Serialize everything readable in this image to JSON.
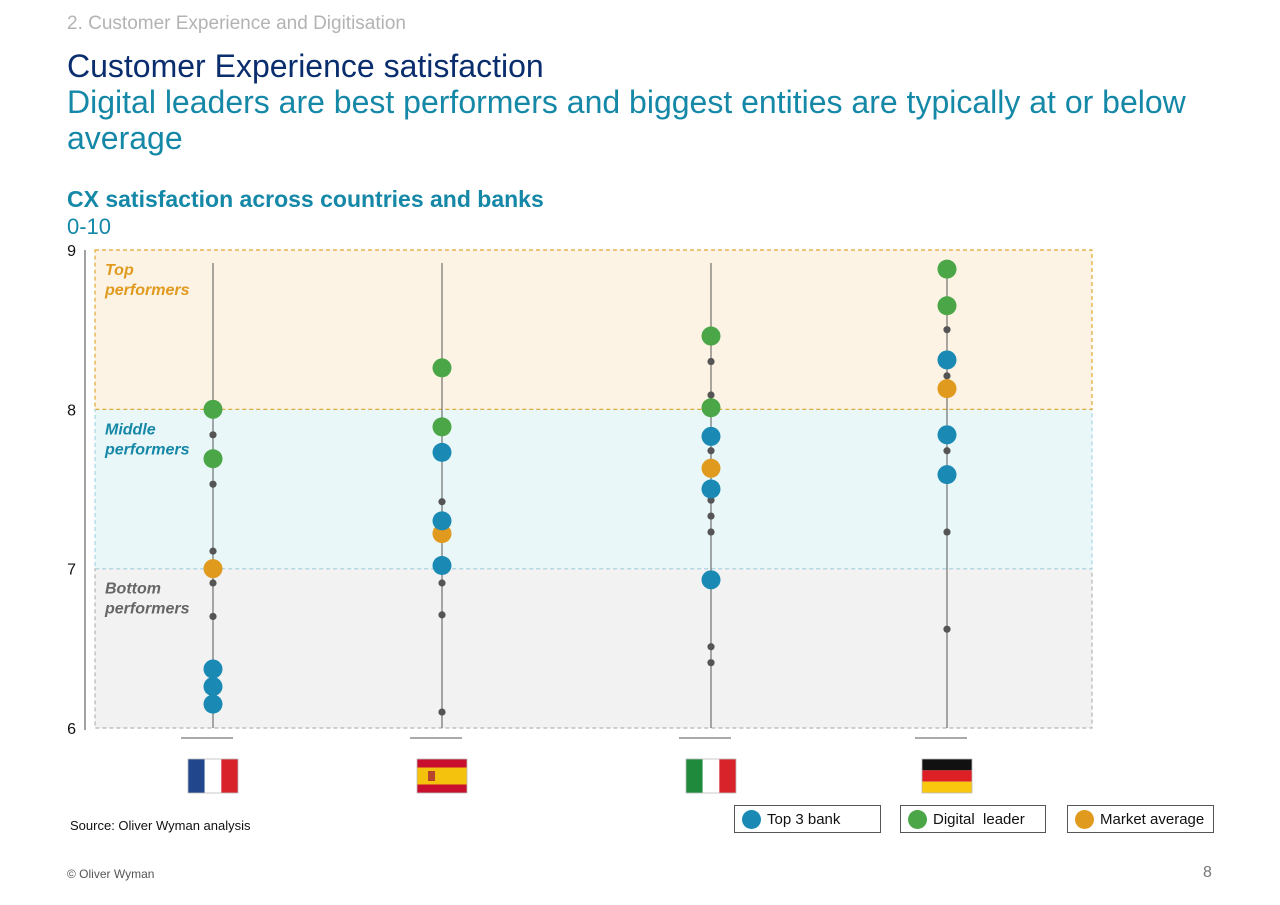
{
  "header": {
    "section": "2. Customer Experience and Digitisation",
    "title": "Customer Experience satisfaction",
    "subtitle": "Digital leaders are best performers and biggest entities are typically at or below average"
  },
  "chart_data": {
    "type": "scatter",
    "title": "CX satisfaction across countries and banks",
    "unit": "0-10",
    "ylim": [
      6,
      9
    ],
    "yticks": [
      6,
      7,
      8,
      9
    ],
    "colors": {
      "top3": "#1a8ab5",
      "digital": "#4aa646",
      "average": "#e09a1e",
      "other": "#555555"
    },
    "bands": [
      {
        "name": "Top performers",
        "label_lines": [
          "Top",
          "performers"
        ],
        "from": 8,
        "to": 9,
        "fill": "#fdf3e4",
        "border": "#e0a82e",
        "text_color": "#e09a1e"
      },
      {
        "name": "Middle performers",
        "label_lines": [
          "Middle",
          "performers"
        ],
        "from": 7,
        "to": 8,
        "fill": "#e9f7f8",
        "border": "#a8d6e3",
        "text_color": "#1588a8"
      },
      {
        "name": "Bottom performers",
        "label_lines": [
          "Bottom",
          "performers"
        ],
        "from": 6,
        "to": 7,
        "fill": "#f2f2f2",
        "border": "#b5b5b5",
        "text_color": "#666666"
      }
    ],
    "countries": [
      {
        "name": "France",
        "flag": "france",
        "top3": [
          6.37,
          6.26,
          6.15
        ],
        "digital": [
          8.0,
          7.69
        ],
        "average": [
          7.0
        ],
        "other": [
          7.84,
          7.53,
          7.11,
          6.91,
          6.7
        ]
      },
      {
        "name": "Spain",
        "flag": "spain",
        "top3": [
          7.73,
          7.3,
          7.02
        ],
        "digital": [
          8.26,
          7.89
        ],
        "average": [
          7.22
        ],
        "other": [
          7.42,
          6.91,
          6.71,
          6.1
        ]
      },
      {
        "name": "Italy",
        "flag": "italy",
        "top3": [
          7.83,
          7.5,
          6.93
        ],
        "digital": [
          8.46,
          8.01
        ],
        "average": [
          7.63
        ],
        "other": [
          8.3,
          8.09,
          7.74,
          7.43,
          7.33,
          7.23,
          6.51,
          6.41
        ]
      },
      {
        "name": "Germany",
        "flag": "germany",
        "top3": [
          8.31,
          7.84,
          7.59
        ],
        "digital": [
          8.88,
          8.65
        ],
        "average": [
          8.13
        ],
        "other": [
          8.5,
          8.21,
          7.74,
          7.23,
          6.62
        ]
      }
    ],
    "legend": [
      {
        "key": "top3",
        "label": "Top 3 bank"
      },
      {
        "key": "digital",
        "label": "Digital  leader"
      },
      {
        "key": "average",
        "label": "Market average"
      }
    ]
  },
  "footer": {
    "source": "Source: Oliver Wyman analysis",
    "copyright": "© Oliver Wyman",
    "page_number": "8"
  }
}
